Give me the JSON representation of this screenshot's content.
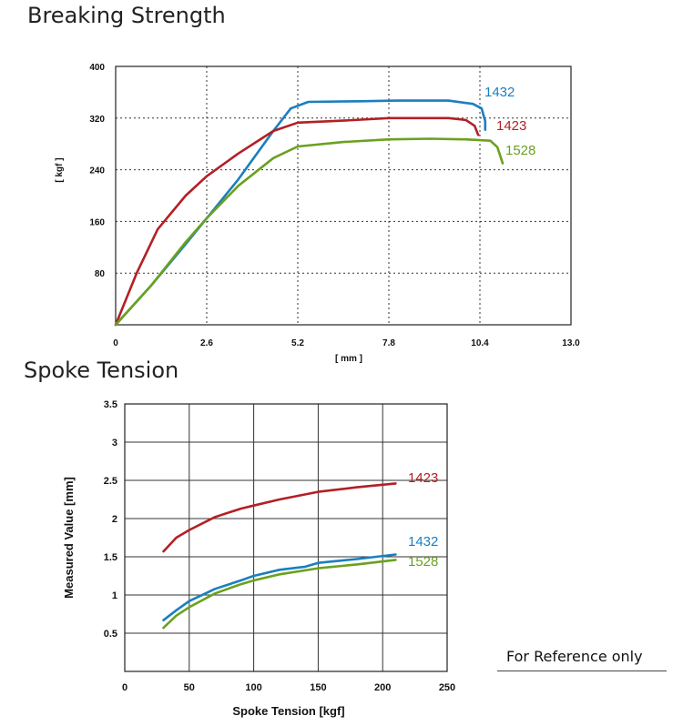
{
  "headings": {
    "breaking_strength": "Breaking Strength",
    "spoke_tension": "Spoke Tension"
  },
  "reference_note": "For Reference only",
  "chart_data": [
    {
      "type": "line",
      "title": "Breaking Strength",
      "xlabel": "[ mm ]",
      "ylabel": "[ kgf ]",
      "xlim": [
        0,
        13.0
      ],
      "ylim": [
        0,
        400
      ],
      "xticks": [
        0,
        2.6,
        5.2,
        7.8,
        10.4,
        13.0
      ],
      "xtick_labels": [
        "0",
        "2.6",
        "5.2",
        "7.8",
        "10.4",
        "13.0"
      ],
      "yticks": [
        80,
        160,
        240,
        320,
        400
      ],
      "ytick_labels": [
        "80",
        "160",
        "240",
        "320",
        "400"
      ],
      "grid": "dotted",
      "series": [
        {
          "name": "1432",
          "color": "#1a7fbf",
          "x": [
            0,
            1,
            2,
            2.6,
            3.5,
            4.5,
            5.0,
            5.5,
            7.0,
            8.0,
            9.5,
            10.2,
            10.45,
            10.55,
            10.55
          ],
          "y": [
            0,
            60,
            125,
            165,
            225,
            300,
            335,
            345,
            346,
            347,
            347,
            342,
            335,
            315,
            302
          ]
        },
        {
          "name": "1423",
          "color": "#b22025",
          "x": [
            0,
            0.6,
            1.2,
            2.0,
            2.6,
            3.5,
            4.5,
            5.2,
            6.5,
            7.8,
            8.5,
            9.5,
            10.0,
            10.25,
            10.35
          ],
          "y": [
            0,
            80,
            148,
            200,
            230,
            265,
            300,
            313,
            316,
            320,
            320,
            320,
            317,
            308,
            294
          ]
        },
        {
          "name": "1528",
          "color": "#6aa11f",
          "x": [
            0,
            1,
            2,
            2.6,
            3.5,
            4.5,
            5.2,
            6.5,
            7.8,
            9.0,
            10.0,
            10.7,
            10.9,
            11.05
          ],
          "y": [
            0,
            60,
            128,
            165,
            215,
            258,
            276,
            283,
            287,
            288,
            287,
            285,
            275,
            250
          ]
        }
      ]
    },
    {
      "type": "line",
      "title": "Spoke Tension",
      "xlabel": "Spoke Tension [kgf]",
      "ylabel": "Measured Value [mm]",
      "xlim": [
        0,
        250
      ],
      "ylim": [
        0,
        3.5
      ],
      "xticks": [
        0,
        50,
        100,
        150,
        200,
        250
      ],
      "xtick_labels": [
        "0",
        "50",
        "100",
        "150",
        "200",
        "250"
      ],
      "yticks": [
        0.5,
        1,
        1.5,
        2,
        2.5,
        3,
        3.5
      ],
      "ytick_labels": [
        "0.5",
        "1",
        "1.5",
        "2",
        "2.5",
        "3",
        "3.5"
      ],
      "grid": "solid",
      "series": [
        {
          "name": "1423",
          "color": "#b22025",
          "x": [
            30,
            40,
            50,
            70,
            90,
            100,
            120,
            150,
            180,
            210
          ],
          "y": [
            1.57,
            1.75,
            1.85,
            2.02,
            2.13,
            2.17,
            2.25,
            2.35,
            2.41,
            2.46
          ]
        },
        {
          "name": "1432",
          "color": "#1a7fbf",
          "x": [
            30,
            40,
            50,
            70,
            90,
            100,
            120,
            140,
            150,
            180,
            210
          ],
          "y": [
            0.67,
            0.8,
            0.92,
            1.08,
            1.19,
            1.25,
            1.33,
            1.37,
            1.42,
            1.47,
            1.53
          ]
        },
        {
          "name": "1528",
          "color": "#6aa11f",
          "x": [
            30,
            40,
            50,
            70,
            90,
            100,
            120,
            150,
            180,
            210
          ],
          "y": [
            0.57,
            0.73,
            0.84,
            1.02,
            1.14,
            1.19,
            1.27,
            1.35,
            1.4,
            1.46
          ]
        }
      ]
    }
  ]
}
